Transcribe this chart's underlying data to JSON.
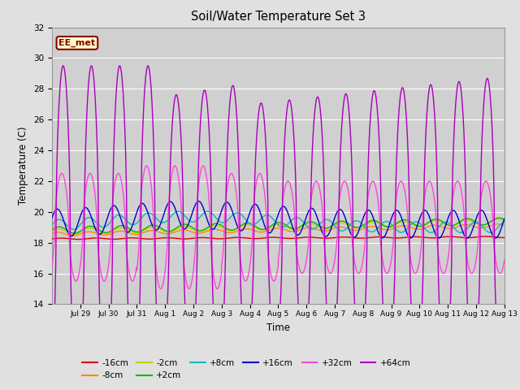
{
  "title": "Soil/Water Temperature Set 3",
  "xlabel": "Time",
  "ylabel": "Temperature (C)",
  "ylim": [
    14,
    32
  ],
  "yticks": [
    14,
    16,
    18,
    20,
    22,
    24,
    26,
    28,
    30,
    32
  ],
  "fig_bg": "#e0e0e0",
  "plot_bg": "#d0d0d0",
  "grid_color": "#ffffff",
  "annotation_text": "EE_met",
  "annotation_bg": "#ffffcc",
  "annotation_border": "#8b0000",
  "series_colors": {
    "-16cm": "#dd0000",
    "-8cm": "#ff8800",
    "-2cm": "#cccc00",
    "+2cm": "#00bb00",
    "+8cm": "#00bbbb",
    "+16cm": "#0000cc",
    "+32cm": "#ff44dd",
    "+64cm": "#aa00bb"
  },
  "xtick_labels": [
    "Jul 29",
    "Jul 30",
    "Jul 31",
    "Aug 1",
    "Aug 2",
    "Aug 3",
    "Aug 4",
    "Aug 5",
    "Aug 6",
    "Aug 7",
    "Aug 8",
    "Aug 9",
    "Aug 10",
    "Aug 11",
    "Aug 12",
    "Aug 13"
  ],
  "num_points": 1600
}
